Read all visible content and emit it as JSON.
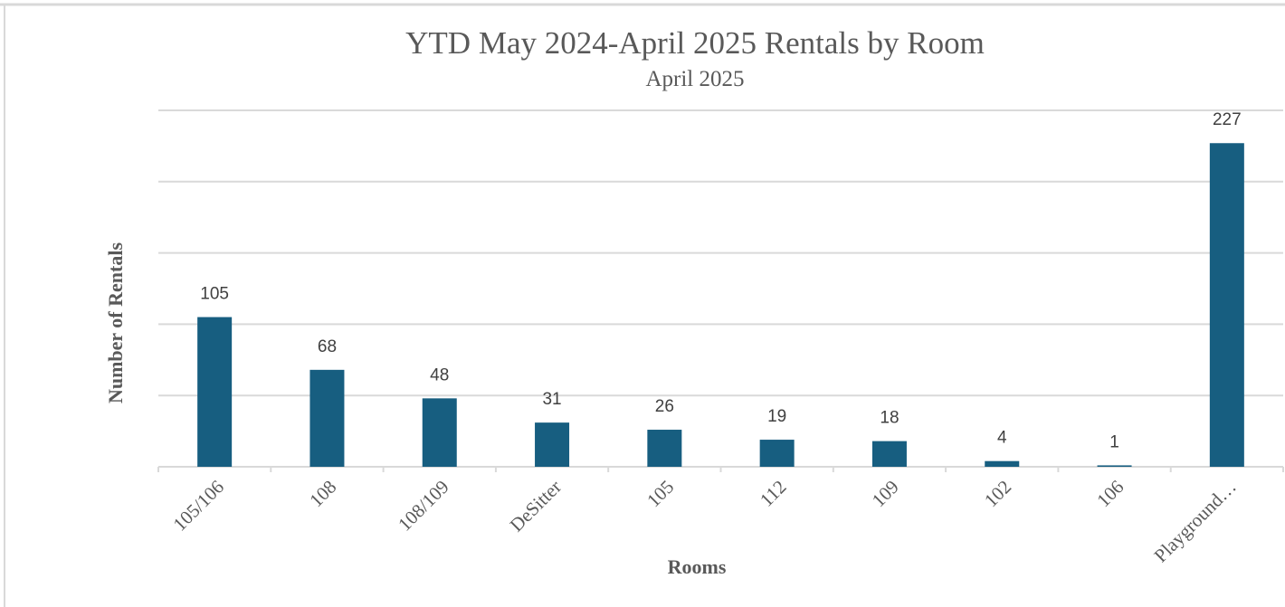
{
  "chart_data": {
    "type": "bar",
    "title": "YTD May 2024-April 2025 Rentals by Room",
    "subtitle": "April 2025",
    "x_label": "Rooms",
    "y_label": "Number of Rentals",
    "categories": [
      "105/106",
      "108",
      "108/109",
      "DeSitter",
      "105",
      "112",
      "109",
      "102",
      "106",
      "Playground…"
    ],
    "values": [
      105,
      68,
      48,
      31,
      26,
      19,
      18,
      4,
      1,
      227
    ],
    "color": "#175e80",
    "ylim": [
      0,
      250
    ],
    "yticks": [
      0,
      50,
      100,
      150,
      200,
      250
    ],
    "grid": true
  }
}
